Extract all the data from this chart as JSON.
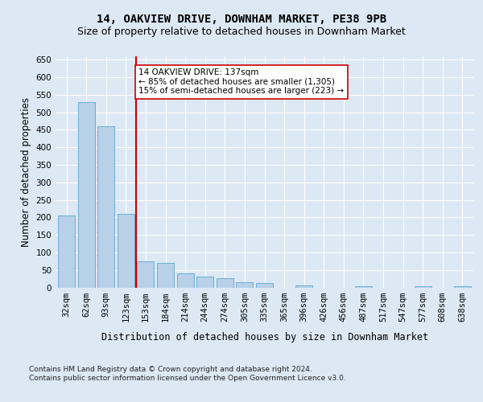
{
  "title_line1": "14, OAKVIEW DRIVE, DOWNHAM MARKET, PE38 9PB",
  "title_line2": "Size of property relative to detached houses in Downham Market",
  "xlabel": "Distribution of detached houses by size in Downham Market",
  "ylabel": "Number of detached properties",
  "footnote": "Contains HM Land Registry data © Crown copyright and database right 2024.\nContains public sector information licensed under the Open Government Licence v3.0.",
  "categories": [
    "32sqm",
    "62sqm",
    "93sqm",
    "123sqm",
    "153sqm",
    "184sqm",
    "214sqm",
    "244sqm",
    "274sqm",
    "305sqm",
    "335sqm",
    "365sqm",
    "396sqm",
    "426sqm",
    "456sqm",
    "487sqm",
    "517sqm",
    "547sqm",
    "577sqm",
    "608sqm",
    "638sqm"
  ],
  "values": [
    205,
    530,
    460,
    210,
    75,
    70,
    40,
    32,
    27,
    15,
    12,
    0,
    5,
    0,
    0,
    3,
    0,
    0,
    3,
    0,
    3
  ],
  "bar_color": "#b8d0e8",
  "bar_edge_color": "#6baed6",
  "reference_line_color": "#cc0000",
  "annotation_text": "14 OAKVIEW DRIVE: 137sqm\n← 85% of detached houses are smaller (1,305)\n15% of semi-detached houses are larger (223) →",
  "annotation_box_color": "#ffffff",
  "annotation_box_edge_color": "#cc0000",
  "ylim": [
    0,
    660
  ],
  "yticks": [
    0,
    50,
    100,
    150,
    200,
    250,
    300,
    350,
    400,
    450,
    500,
    550,
    600,
    650
  ],
  "bg_color": "#dce9f5",
  "plot_bg_color": "#dce9f5",
  "grid_color": "#ffffff",
  "title_fontsize": 10,
  "subtitle_fontsize": 9,
  "tick_fontsize": 7.5,
  "label_fontsize": 8.5,
  "footnote_fontsize": 6.5,
  "ylabel_fontsize": 8.5
}
